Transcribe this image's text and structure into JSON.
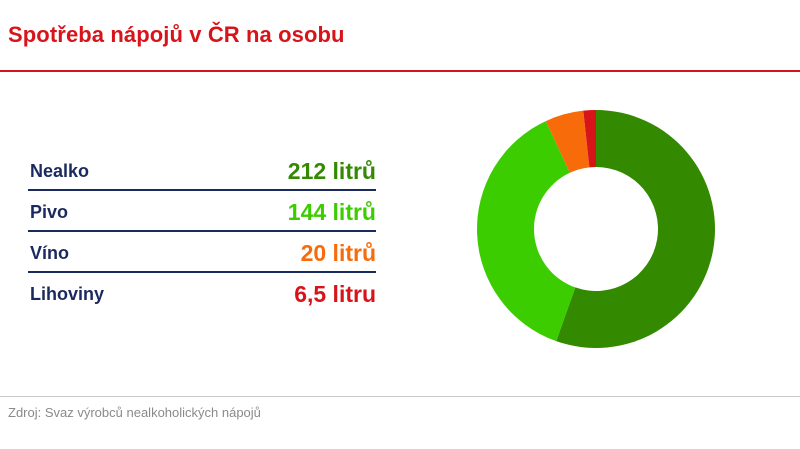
{
  "title": "Spotřeba nápojů v ČR na osobu",
  "source": "Zdroj: Svaz výrobců nealkoholických nápojů",
  "chart_data": {
    "type": "pie",
    "title": "Spotřeba nápojů v ČR na osobu",
    "unit": "litr",
    "categories": [
      "Nealko",
      "Pivo",
      "Víno",
      "Lihoviny"
    ],
    "values": [
      212,
      144,
      20,
      6.5
    ],
    "value_labels": [
      "212 litrů",
      "144 litrů",
      "20 litrů",
      "6,5 litru"
    ],
    "colors": [
      "#338a00",
      "#3ccd00",
      "#f76b0a",
      "#d7141a"
    ]
  }
}
